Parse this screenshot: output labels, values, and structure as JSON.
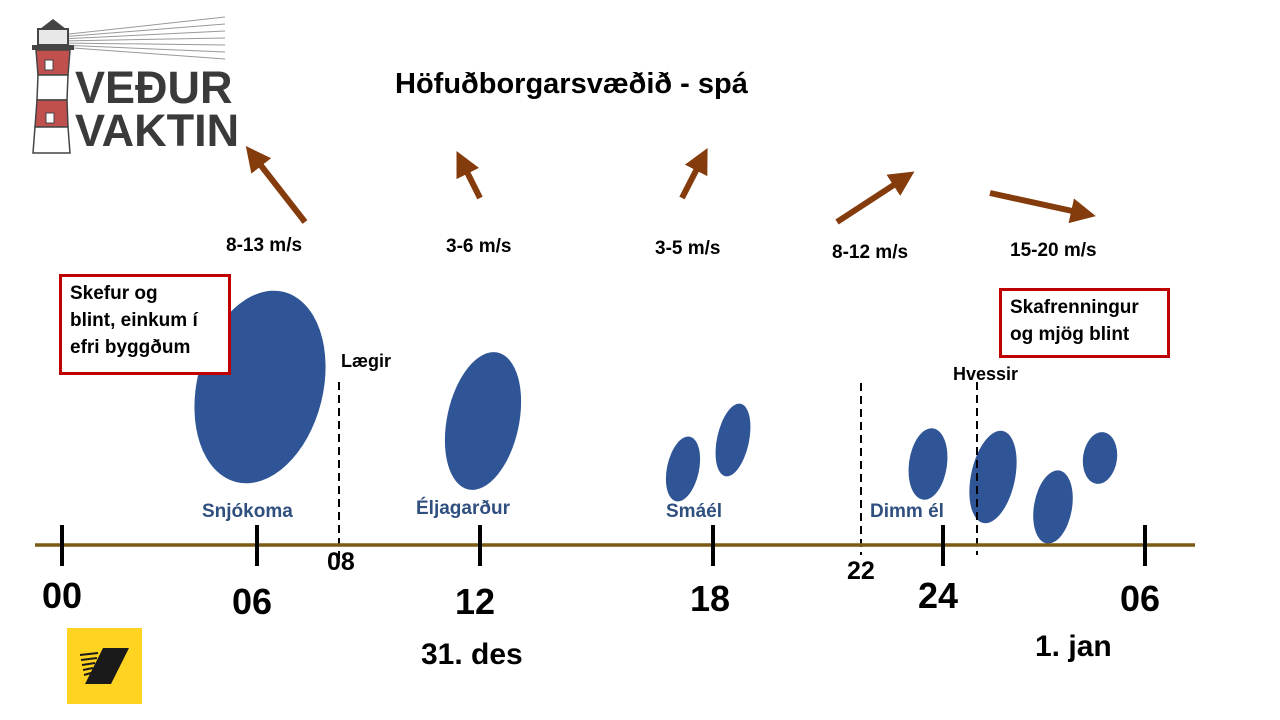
{
  "title": "Höfuðborgarsvæðið - spá",
  "logo": {
    "line1": "VEÐUR",
    "line2": "VAKTIN"
  },
  "wind": [
    {
      "speed": "8-13 m/s"
    },
    {
      "speed": "3-6 m/s"
    },
    {
      "speed": "3-5 m/s"
    },
    {
      "speed": "8-12 m/s"
    },
    {
      "speed": "15-20 m/s"
    }
  ],
  "boxes": {
    "left": [
      "Skefur og",
      "blint, einkum í",
      "efri byggðum"
    ],
    "right": [
      "Skafrenningur",
      "og mjög blint"
    ]
  },
  "events": {
    "calms": "Lægir",
    "strengthens": "Hvessir"
  },
  "conditions": {
    "snow": "Snjókoma",
    "showers": "Éljagarður",
    "small_showers": "Smáél",
    "dense_showers": "Dimm él"
  },
  "timeline": {
    "hours": [
      "00",
      "06",
      "12",
      "18",
      "24",
      "06"
    ],
    "minor": [
      "08",
      "22"
    ],
    "dates": [
      "31. des",
      "1. jan"
    ]
  },
  "colors": {
    "axis": "#7a5c14",
    "arrow": "#843c0c",
    "blob": "#2f5597",
    "box_border": "#c00000",
    "sponsor": "#ffd320"
  }
}
